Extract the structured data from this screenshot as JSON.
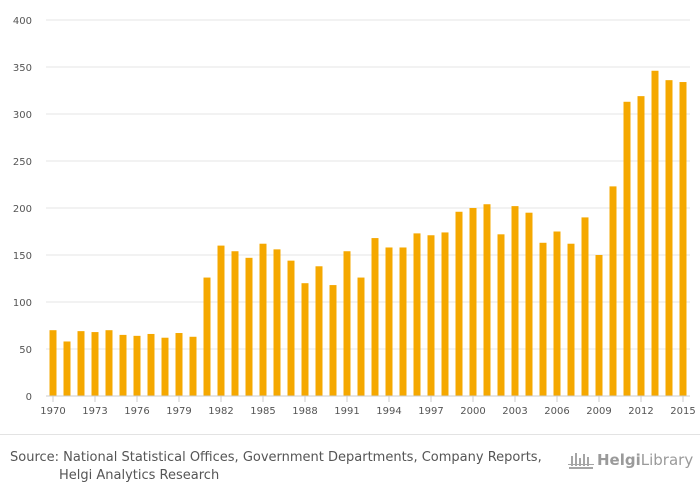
{
  "chart_data": {
    "type": "bar",
    "title": "",
    "xlabel": "",
    "ylabel": "",
    "ylim": [
      0,
      400
    ],
    "yticks": [
      0,
      50,
      100,
      150,
      200,
      250,
      300,
      350,
      400
    ],
    "xtick_labels": [
      "1970",
      "1973",
      "1976",
      "1979",
      "1982",
      "1985",
      "1988",
      "1991",
      "1994",
      "1997",
      "2000",
      "2003",
      "2006",
      "2009",
      "2012",
      "2015"
    ],
    "categories": [
      "1970",
      "1971",
      "1972",
      "1973",
      "1974",
      "1975",
      "1976",
      "1977",
      "1978",
      "1979",
      "1980",
      "1981",
      "1982",
      "1983",
      "1984",
      "1985",
      "1986",
      "1987",
      "1988",
      "1989",
      "1990",
      "1991",
      "1992",
      "1993",
      "1994",
      "1995",
      "1996",
      "1997",
      "1998",
      "1999",
      "2000",
      "2001",
      "2002",
      "2003",
      "2004",
      "2005",
      "2006",
      "2007",
      "2008",
      "2009",
      "2010",
      "2011",
      "2012",
      "2013",
      "2014",
      "2015"
    ],
    "values": [
      70,
      58,
      69,
      68,
      70,
      65,
      64,
      66,
      62,
      67,
      63,
      126,
      160,
      154,
      147,
      162,
      156,
      144,
      120,
      138,
      118,
      154,
      126,
      168,
      158,
      158,
      173,
      171,
      174,
      196,
      200,
      204,
      172,
      202,
      195,
      163,
      175,
      162,
      190,
      150,
      223,
      313,
      319,
      346,
      336,
      334
    ],
    "bar_color": "#f5a800",
    "grid": true
  },
  "footer": {
    "source_line1": "Source: National Statistical Offices, Government Departments, Company Reports,",
    "source_line2": "Helgi Analytics Research",
    "logo_helgi": "Helgi",
    "logo_library": "Library",
    "logo_color": "#9a9a9a"
  }
}
